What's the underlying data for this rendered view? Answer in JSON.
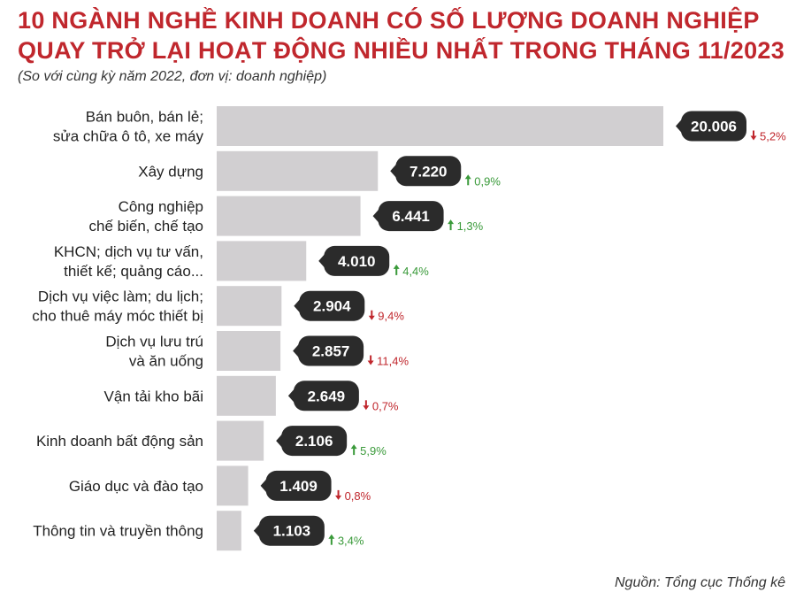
{
  "title_lines": [
    "10 NGÀNH NGHỀ KINH DOANH CÓ SỐ LƯỢNG DOANH NGHIỆP",
    "QUAY TRỞ LẠI HOẠT ĐỘNG NHIỀU NHẤT TRONG THÁNG 11/2023"
  ],
  "subtitle": "(So với cùng kỳ năm 2022, đơn vị: doanh nghiệp)",
  "source": "Nguồn: Tổng cục Thống kê",
  "colors": {
    "title": "#c0272d",
    "bar": "#d1cfd1",
    "bubble": "#2b2b2b",
    "up": "#3a9a3a",
    "down": "#c0272d"
  },
  "chart_data": {
    "type": "bar",
    "orientation": "horizontal",
    "title": "10 NGÀNH NGHỀ KINH DOANH CÓ SỐ LƯỢNG DOANH NGHIỆP QUAY TRỞ LẠI HOẠT ĐỘNG NHIỀU NHẤT TRONG THÁNG 11/2023",
    "unit": "doanh nghiệp",
    "categories": [
      [
        "Bán buôn, bán lẻ;",
        "sửa chữa ô tô, xe máy"
      ],
      [
        "Xây dựng"
      ],
      [
        "Công nghiệp",
        "chế biến, chế tạo"
      ],
      [
        "KHCN; dịch vụ tư vấn,",
        "thiết kế; quảng cáo..."
      ],
      [
        "Dịch vụ việc làm; du lịch;",
        "cho thuê máy móc thiết bị"
      ],
      [
        "Dịch vụ lưu trú",
        "và ăn uống"
      ],
      [
        "Vận tải kho bãi"
      ],
      [
        "Kinh doanh bất động sản"
      ],
      [
        "Giáo dục và đào tạo"
      ],
      [
        "Thông tin và truyền thông"
      ]
    ],
    "values": [
      20006,
      7220,
      6441,
      4010,
      2904,
      2857,
      2649,
      2106,
      1409,
      1103
    ],
    "value_labels": [
      "20.006",
      "7.220",
      "6.441",
      "4.010",
      "2.904",
      "2.857",
      "2.649",
      "2.106",
      "1.409",
      "1.103"
    ],
    "changes": [
      "5,2%",
      "0,9%",
      "1,3%",
      "4,4%",
      "9,4%",
      "11,4%",
      "0,7%",
      "5,9%",
      "0,8%",
      "3,4%"
    ],
    "change_directions": [
      "down",
      "up",
      "up",
      "up",
      "down",
      "down",
      "down",
      "up",
      "down",
      "up"
    ],
    "xlim": [
      0,
      20006
    ],
    "grid": false,
    "legend": "none"
  }
}
